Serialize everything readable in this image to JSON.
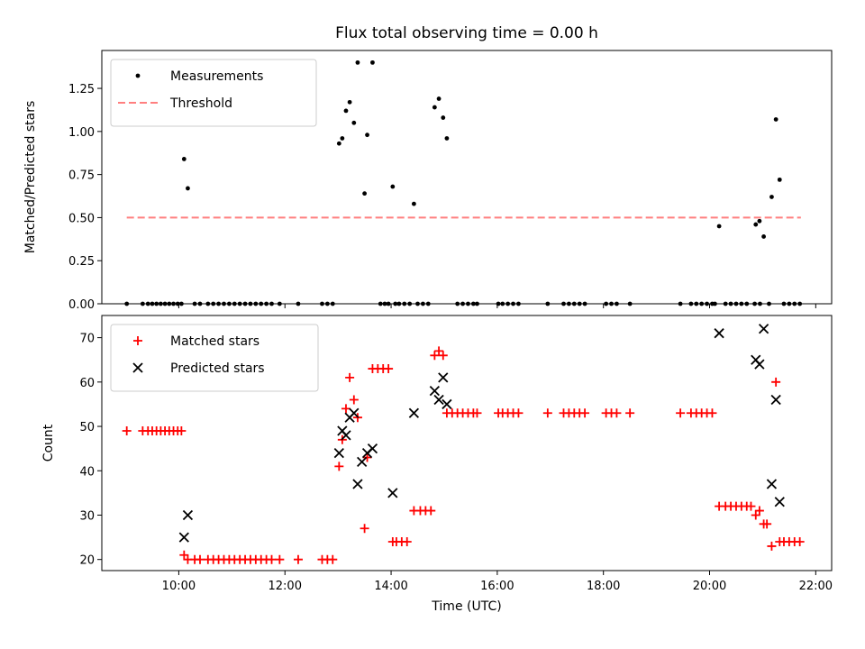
{
  "chart_data": [
    {
      "type": "scatter",
      "title": "Flux total observing time = 0.00 h",
      "xlabel": "",
      "ylabel": "Matched/Predicted stars",
      "xlim": [
        8.55,
        22.3
      ],
      "ylim": [
        0,
        1.47
      ],
      "x_ticks": [
        10,
        12,
        14,
        16,
        18,
        20,
        22
      ],
      "x_tick_labels": [],
      "y_ticks": [
        0,
        0.25,
        0.5,
        0.75,
        1.0,
        1.25
      ],
      "y_tick_labels": [
        "0.00",
        "0.25",
        "0.50",
        "0.75",
        "1.00",
        "1.25"
      ],
      "grid": false,
      "legend": "top-left",
      "series": [
        {
          "name": "Measurements",
          "kind": "dot",
          "color": "#000000",
          "points": [
            [
              9.02,
              0
            ],
            [
              9.32,
              0
            ],
            [
              9.42,
              0
            ],
            [
              9.5,
              0
            ],
            [
              9.58,
              0
            ],
            [
              9.66,
              0
            ],
            [
              9.74,
              0
            ],
            [
              9.82,
              0
            ],
            [
              9.9,
              0
            ],
            [
              9.98,
              0
            ],
            [
              10.05,
              0
            ],
            [
              10.1,
              0.84
            ],
            [
              10.17,
              0.67
            ],
            [
              10.3,
              0
            ],
            [
              10.4,
              0
            ],
            [
              10.55,
              0
            ],
            [
              10.65,
              0
            ],
            [
              10.75,
              0
            ],
            [
              10.85,
              0
            ],
            [
              10.95,
              0
            ],
            [
              11.05,
              0
            ],
            [
              11.15,
              0
            ],
            [
              11.25,
              0
            ],
            [
              11.35,
              0
            ],
            [
              11.45,
              0
            ],
            [
              11.55,
              0
            ],
            [
              11.65,
              0
            ],
            [
              11.75,
              0
            ],
            [
              11.9,
              0
            ],
            [
              12.25,
              0
            ],
            [
              12.7,
              0
            ],
            [
              12.8,
              0
            ],
            [
              12.9,
              0
            ],
            [
              13.02,
              0.93
            ],
            [
              13.08,
              0.96
            ],
            [
              13.15,
              1.12
            ],
            [
              13.22,
              1.17
            ],
            [
              13.3,
              1.05
            ],
            [
              13.37,
              1.4
            ],
            [
              13.5,
              0.64
            ],
            [
              13.55,
              0.98
            ],
            [
              13.65,
              1.4
            ],
            [
              13.8,
              0
            ],
            [
              13.88,
              0
            ],
            [
              13.95,
              0
            ],
            [
              14.08,
              0
            ],
            [
              14.15,
              0
            ],
            [
              14.25,
              0
            ],
            [
              14.35,
              0
            ],
            [
              14.5,
              0
            ],
            [
              14.6,
              0
            ],
            [
              14.7,
              0
            ],
            [
              14.03,
              0.68
            ],
            [
              14.43,
              0.58
            ],
            [
              14.82,
              1.14
            ],
            [
              14.9,
              1.19
            ],
            [
              14.98,
              1.08
            ],
            [
              15.05,
              0.96
            ],
            [
              15.25,
              0
            ],
            [
              15.35,
              0
            ],
            [
              15.45,
              0
            ],
            [
              15.55,
              0
            ],
            [
              15.62,
              0
            ],
            [
              16.02,
              0
            ],
            [
              16.1,
              0
            ],
            [
              16.2,
              0
            ],
            [
              16.3,
              0
            ],
            [
              16.4,
              0
            ],
            [
              16.95,
              0
            ],
            [
              17.25,
              0
            ],
            [
              17.35,
              0
            ],
            [
              17.45,
              0
            ],
            [
              17.55,
              0
            ],
            [
              17.65,
              0
            ],
            [
              18.05,
              0
            ],
            [
              18.15,
              0
            ],
            [
              18.25,
              0
            ],
            [
              18.5,
              0
            ],
            [
              19.45,
              0
            ],
            [
              19.65,
              0
            ],
            [
              19.75,
              0
            ],
            [
              19.85,
              0
            ],
            [
              19.95,
              0
            ],
            [
              20.05,
              0
            ],
            [
              20.1,
              0
            ],
            [
              20.3,
              0
            ],
            [
              20.4,
              0
            ],
            [
              20.5,
              0
            ],
            [
              20.6,
              0
            ],
            [
              20.7,
              0
            ],
            [
              20.85,
              0
            ],
            [
              20.95,
              0
            ],
            [
              21.12,
              0
            ],
            [
              21.4,
              0
            ],
            [
              21.5,
              0
            ],
            [
              21.6,
              0
            ],
            [
              21.7,
              0
            ],
            [
              20.18,
              0.45
            ],
            [
              20.87,
              0.46
            ],
            [
              20.94,
              0.48
            ],
            [
              21.02,
              0.39
            ],
            [
              21.17,
              0.62
            ],
            [
              21.25,
              1.07
            ],
            [
              21.32,
              0.72
            ]
          ]
        },
        {
          "name": "Threshold",
          "kind": "dashed-line",
          "color": "#ff7f7f",
          "points": [
            [
              9.02,
              0.5
            ],
            [
              21.72,
              0.5
            ]
          ]
        }
      ]
    },
    {
      "type": "scatter",
      "title": "",
      "xlabel": "Time (UTC)",
      "ylabel": "Count",
      "xlim": [
        8.55,
        22.3
      ],
      "ylim": [
        17.5,
        75
      ],
      "x_ticks": [
        10,
        12,
        14,
        16,
        18,
        20,
        22
      ],
      "x_tick_labels": [
        "10:00",
        "12:00",
        "14:00",
        "16:00",
        "18:00",
        "20:00",
        "22:00"
      ],
      "y_ticks": [
        20,
        30,
        40,
        50,
        60,
        70
      ],
      "y_tick_labels": [
        "20",
        "30",
        "40",
        "50",
        "60",
        "70"
      ],
      "grid": false,
      "legend": "top-left",
      "series": [
        {
          "name": "Matched stars",
          "kind": "plus",
          "color": "#ff0000",
          "points": [
            [
              9.02,
              49
            ],
            [
              9.32,
              49
            ],
            [
              9.42,
              49
            ],
            [
              9.5,
              49
            ],
            [
              9.58,
              49
            ],
            [
              9.66,
              49
            ],
            [
              9.74,
              49
            ],
            [
              9.82,
              49
            ],
            [
              9.9,
              49
            ],
            [
              9.98,
              49
            ],
            [
              10.05,
              49
            ],
            [
              10.1,
              21
            ],
            [
              10.17,
              20
            ],
            [
              10.3,
              20
            ],
            [
              10.4,
              20
            ],
            [
              10.55,
              20
            ],
            [
              10.65,
              20
            ],
            [
              10.75,
              20
            ],
            [
              10.85,
              20
            ],
            [
              10.95,
              20
            ],
            [
              11.05,
              20
            ],
            [
              11.15,
              20
            ],
            [
              11.25,
              20
            ],
            [
              11.35,
              20
            ],
            [
              11.45,
              20
            ],
            [
              11.55,
              20
            ],
            [
              11.65,
              20
            ],
            [
              11.75,
              20
            ],
            [
              11.9,
              20
            ],
            [
              12.25,
              20
            ],
            [
              12.7,
              20
            ],
            [
              12.8,
              20
            ],
            [
              12.9,
              20
            ],
            [
              13.02,
              41
            ],
            [
              13.08,
              47
            ],
            [
              13.15,
              54
            ],
            [
              13.22,
              61
            ],
            [
              13.3,
              56
            ],
            [
              13.37,
              52
            ],
            [
              13.5,
              27
            ],
            [
              13.55,
              43
            ],
            [
              13.65,
              63
            ],
            [
              13.75,
              63
            ],
            [
              13.85,
              63
            ],
            [
              13.95,
              63
            ],
            [
              14.03,
              24
            ],
            [
              14.1,
              24
            ],
            [
              14.2,
              24
            ],
            [
              14.3,
              24
            ],
            [
              14.43,
              31
            ],
            [
              14.55,
              31
            ],
            [
              14.65,
              31
            ],
            [
              14.75,
              31
            ],
            [
              14.82,
              66
            ],
            [
              14.9,
              67
            ],
            [
              14.98,
              66
            ],
            [
              15.05,
              53
            ],
            [
              15.15,
              53
            ],
            [
              15.25,
              53
            ],
            [
              15.35,
              53
            ],
            [
              15.45,
              53
            ],
            [
              15.55,
              53
            ],
            [
              15.62,
              53
            ],
            [
              16.02,
              53
            ],
            [
              16.1,
              53
            ],
            [
              16.2,
              53
            ],
            [
              16.3,
              53
            ],
            [
              16.4,
              53
            ],
            [
              16.95,
              53
            ],
            [
              17.25,
              53
            ],
            [
              17.35,
              53
            ],
            [
              17.45,
              53
            ],
            [
              17.55,
              53
            ],
            [
              17.65,
              53
            ],
            [
              18.05,
              53
            ],
            [
              18.15,
              53
            ],
            [
              18.25,
              53
            ],
            [
              18.5,
              53
            ],
            [
              19.45,
              53
            ],
            [
              19.65,
              53
            ],
            [
              19.75,
              53
            ],
            [
              19.85,
              53
            ],
            [
              19.95,
              53
            ],
            [
              20.05,
              53
            ],
            [
              20.18,
              32
            ],
            [
              20.3,
              32
            ],
            [
              20.4,
              32
            ],
            [
              20.5,
              32
            ],
            [
              20.6,
              32
            ],
            [
              20.7,
              32
            ],
            [
              20.78,
              32
            ],
            [
              20.87,
              30
            ],
            [
              20.94,
              31
            ],
            [
              21.02,
              28
            ],
            [
              21.08,
              28
            ],
            [
              21.17,
              23
            ],
            [
              21.25,
              60
            ],
            [
              21.32,
              24
            ],
            [
              21.4,
              24
            ],
            [
              21.5,
              24
            ],
            [
              21.6,
              24
            ],
            [
              21.7,
              24
            ]
          ]
        },
        {
          "name": "Predicted stars",
          "kind": "x",
          "color": "#000000",
          "points": [
            [
              10.1,
              25
            ],
            [
              10.17,
              30
            ],
            [
              13.02,
              44
            ],
            [
              13.08,
              49
            ],
            [
              13.15,
              48
            ],
            [
              13.22,
              52
            ],
            [
              13.3,
              53
            ],
            [
              13.37,
              37
            ],
            [
              13.45,
              42
            ],
            [
              13.55,
              44
            ],
            [
              13.65,
              45
            ],
            [
              14.03,
              35
            ],
            [
              14.43,
              53
            ],
            [
              14.82,
              58
            ],
            [
              14.9,
              56
            ],
            [
              14.98,
              61
            ],
            [
              15.05,
              55
            ],
            [
              20.18,
              71
            ],
            [
              20.87,
              65
            ],
            [
              20.94,
              64
            ],
            [
              21.02,
              72
            ],
            [
              21.17,
              37
            ],
            [
              21.25,
              56
            ],
            [
              21.32,
              33
            ]
          ]
        }
      ]
    }
  ]
}
